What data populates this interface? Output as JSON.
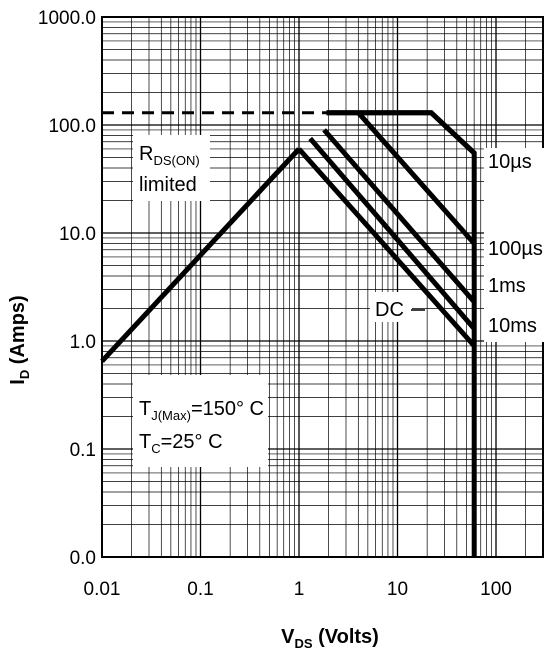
{
  "chart_data": {
    "type": "line",
    "title": "",
    "xlabel": {
      "main": "V",
      "sub": "DS",
      "rest": " (Volts)"
    },
    "ylabel": {
      "main": "I",
      "sub": "D",
      "rest": " (Amps)"
    },
    "x_scale": "log",
    "y_scale": "log",
    "xlim": [
      0.01,
      300
    ],
    "ylim": [
      0.01,
      1000
    ],
    "grid": true,
    "x_ticks": [
      {
        "value": 0.01,
        "label": "0.01"
      },
      {
        "value": 0.1,
        "label": "0.1"
      },
      {
        "value": 1,
        "label": "1"
      },
      {
        "value": 10,
        "label": "10"
      },
      {
        "value": 100,
        "label": "100"
      }
    ],
    "y_ticks": [
      {
        "value": 1000,
        "label": "1000.0"
      },
      {
        "value": 100,
        "label": "100.0"
      },
      {
        "value": 10,
        "label": "10.0"
      },
      {
        "value": 1,
        "label": "1.0"
      },
      {
        "value": 0.1,
        "label": "0.1"
      },
      {
        "value": 0.01,
        "label": "0.0"
      }
    ],
    "series": [
      {
        "name": "",
        "style": "dashed",
        "points": [
          [
            0.01,
            130
          ],
          [
            1.9,
            130
          ]
        ]
      },
      {
        "name": "",
        "style": "solid",
        "points": [
          [
            0.01,
            0.65
          ],
          [
            1,
            60
          ]
        ]
      },
      {
        "name": "",
        "style": "solid",
        "points": [
          [
            1.9,
            130
          ],
          [
            22,
            130
          ],
          [
            60,
            55
          ],
          [
            60,
            0.01
          ]
        ]
      },
      {
        "name": "10µs",
        "style": "solid",
        "points": [
          [
            1.9,
            130
          ],
          [
            22,
            130
          ],
          [
            60,
            55
          ]
        ]
      },
      {
        "name": "100µs",
        "style": "solid",
        "points": [
          [
            4,
            130
          ],
          [
            60,
            8
          ]
        ]
      },
      {
        "name": "1ms",
        "style": "solid",
        "points": [
          [
            1.8,
            90
          ],
          [
            60,
            2.3
          ]
        ]
      },
      {
        "name": "10ms",
        "style": "solid",
        "points": [
          [
            1.3,
            75
          ],
          [
            60,
            1.3
          ]
        ]
      },
      {
        "name": "DC",
        "style": "solid",
        "points": [
          [
            1,
            60
          ],
          [
            60,
            0.9
          ]
        ]
      }
    ],
    "annotations": {
      "rdson": {
        "main": "R",
        "sub": "DS(ON)",
        "line2": "limited"
      },
      "tj": {
        "main": "T",
        "sub": "J(Max)",
        "rest": "=150° C"
      },
      "tc": {
        "main": "T",
        "sub": "C",
        "rest": "=25° C"
      },
      "dc_label": "DC",
      "curve_labels": [
        "10µs",
        "100µs",
        "1ms",
        "10ms"
      ]
    }
  }
}
